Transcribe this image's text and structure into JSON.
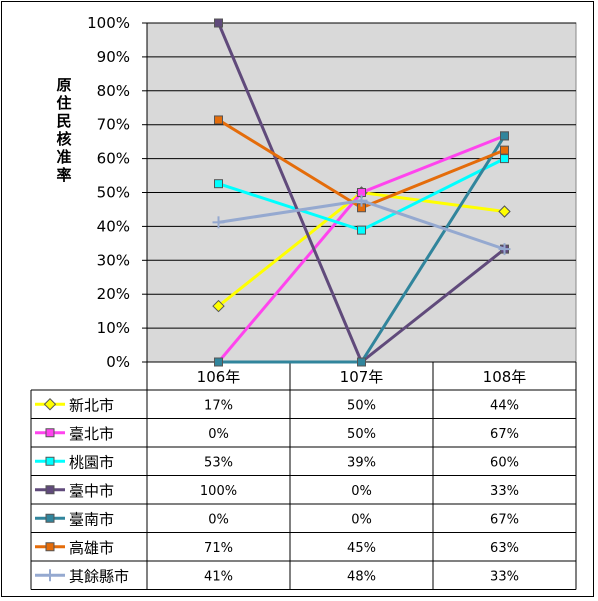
{
  "chart_data": {
    "type": "line",
    "ylabel": "原住民核准率",
    "categories": [
      "106年",
      "107年",
      "108年"
    ],
    "y_ticks": [
      "0%",
      "10%",
      "20%",
      "30%",
      "40%",
      "50%",
      "60%",
      "70%",
      "80%",
      "90%",
      "100%"
    ],
    "ylim": [
      0,
      100
    ],
    "grid": true,
    "legend": "data-table-below",
    "series": [
      {
        "name": "新北市",
        "values": [
          16.5,
          50,
          44.4
        ],
        "labels": [
          "17%",
          "50%",
          "44%"
        ],
        "color": "#ffff00",
        "marker": "diamond"
      },
      {
        "name": "臺北市",
        "values": [
          0,
          50,
          66.7
        ],
        "labels": [
          "0%",
          "50%",
          "67%"
        ],
        "color": "#ff44ee",
        "marker": "square"
      },
      {
        "name": "桃園市",
        "values": [
          52.6,
          38.9,
          60
        ],
        "labels": [
          "53%",
          "39%",
          "60%"
        ],
        "color": "#00ffff",
        "marker": "square"
      },
      {
        "name": "臺中市",
        "values": [
          100,
          0,
          33.3
        ],
        "labels": [
          "100%",
          "0%",
          "33%"
        ],
        "color": "#604a7b",
        "marker": "square"
      },
      {
        "name": "臺南市",
        "values": [
          0,
          0,
          66.7
        ],
        "labels": [
          "0%",
          "0%",
          "67%"
        ],
        "color": "#31859c",
        "marker": "square"
      },
      {
        "name": "高雄市",
        "values": [
          71.4,
          45.5,
          62.5
        ],
        "labels": [
          "71%",
          "45%",
          "63%"
        ],
        "color": "#e46c0a",
        "marker": "square"
      },
      {
        "name": "其餘縣市",
        "values": [
          41.2,
          47.6,
          33.3
        ],
        "labels": [
          "41%",
          "48%",
          "33%"
        ],
        "color": "#95a9d0",
        "marker": "plus"
      }
    ]
  }
}
